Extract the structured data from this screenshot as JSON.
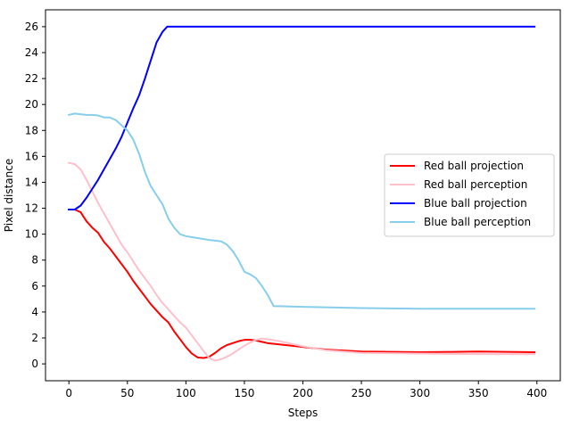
{
  "chart_data": {
    "type": "line",
    "title": "",
    "xlabel": "Steps",
    "ylabel": "Pixel distance",
    "xlim": [
      -20,
      420
    ],
    "ylim": [
      -1.3,
      27.3
    ],
    "xticks": [
      0,
      50,
      100,
      150,
      200,
      250,
      300,
      350,
      400
    ],
    "yticks": [
      0,
      2,
      4,
      6,
      8,
      10,
      12,
      14,
      16,
      18,
      20,
      22,
      24,
      26
    ],
    "grid": false,
    "legend_position": "center-right",
    "series": [
      {
        "name": "Red ball projection",
        "color": "#ff0000",
        "x": [
          0,
          5,
          10,
          15,
          20,
          25,
          30,
          35,
          40,
          45,
          50,
          55,
          60,
          65,
          70,
          75,
          80,
          85,
          90,
          95,
          100,
          105,
          110,
          115,
          120,
          125,
          130,
          135,
          140,
          145,
          150,
          155,
          160,
          165,
          170,
          180,
          200,
          220,
          250,
          300,
          350,
          398
        ],
        "y": [
          11.9,
          11.9,
          11.7,
          11.0,
          10.5,
          10.1,
          9.4,
          8.9,
          8.3,
          7.7,
          7.1,
          6.4,
          5.8,
          5.2,
          4.6,
          4.1,
          3.6,
          3.2,
          2.5,
          1.9,
          1.3,
          0.8,
          0.5,
          0.45,
          0.55,
          0.85,
          1.2,
          1.45,
          1.6,
          1.75,
          1.85,
          1.85,
          1.8,
          1.7,
          1.6,
          1.5,
          1.3,
          1.1,
          0.95,
          0.9,
          0.95,
          0.9
        ]
      },
      {
        "name": "Red ball perception",
        "color": "#ffc0cb",
        "x": [
          0,
          5,
          10,
          15,
          20,
          25,
          30,
          35,
          40,
          45,
          50,
          55,
          60,
          65,
          70,
          75,
          80,
          85,
          90,
          95,
          100,
          105,
          110,
          115,
          120,
          125,
          130,
          135,
          140,
          145,
          150,
          155,
          160,
          165,
          170,
          180,
          200,
          220,
          250,
          300,
          350,
          398
        ],
        "y": [
          15.5,
          15.4,
          15.0,
          14.2,
          13.3,
          12.4,
          11.6,
          10.8,
          10.0,
          9.2,
          8.6,
          7.9,
          7.2,
          6.6,
          6.0,
          5.3,
          4.7,
          4.2,
          3.7,
          3.2,
          2.8,
          2.2,
          1.6,
          1.0,
          0.45,
          0.25,
          0.35,
          0.55,
          0.8,
          1.1,
          1.4,
          1.65,
          1.85,
          1.95,
          1.9,
          1.75,
          1.35,
          1.05,
          0.85,
          0.8,
          0.75,
          0.75
        ]
      },
      {
        "name": "Blue ball projection",
        "color": "#0000ff",
        "x": [
          0,
          5,
          10,
          15,
          20,
          25,
          30,
          35,
          40,
          45,
          50,
          55,
          60,
          65,
          70,
          75,
          80,
          84,
          90,
          100,
          150,
          200,
          250,
          300,
          350,
          398
        ],
        "y": [
          11.9,
          11.9,
          12.2,
          12.8,
          13.5,
          14.2,
          15.0,
          15.8,
          16.6,
          17.5,
          18.6,
          19.7,
          20.7,
          22.0,
          23.4,
          24.8,
          25.6,
          26.0,
          26.0,
          26.0,
          26.0,
          26.0,
          26.0,
          26.0,
          26.0,
          26.0
        ]
      },
      {
        "name": "Blue ball perception",
        "color": "#87ceeb",
        "x": [
          0,
          5,
          10,
          15,
          20,
          25,
          30,
          35,
          40,
          45,
          50,
          55,
          60,
          65,
          70,
          75,
          80,
          85,
          90,
          95,
          100,
          110,
          120,
          130,
          135,
          140,
          145,
          150,
          155,
          160,
          165,
          170,
          175,
          180,
          200,
          250,
          300,
          350,
          398
        ],
        "y": [
          19.2,
          19.3,
          19.25,
          19.2,
          19.2,
          19.15,
          19.0,
          19.0,
          18.8,
          18.4,
          18.0,
          17.3,
          16.2,
          14.8,
          13.7,
          13.0,
          12.3,
          11.2,
          10.5,
          10.0,
          9.85,
          9.7,
          9.55,
          9.45,
          9.2,
          8.7,
          8.0,
          7.1,
          6.9,
          6.6,
          6.0,
          5.3,
          4.45,
          4.45,
          4.4,
          4.3,
          4.25,
          4.25,
          4.25
        ]
      }
    ]
  }
}
